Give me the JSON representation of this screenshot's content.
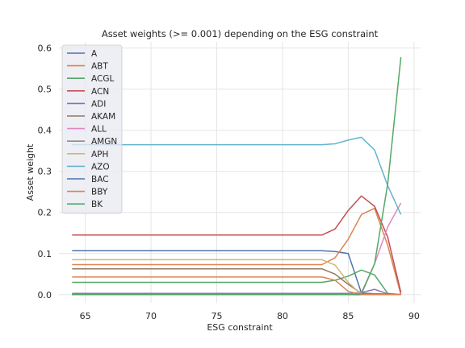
{
  "chart_data": {
    "type": "line",
    "title": "Asset weights (>= 0.001) depending on the ESG constraint",
    "xlabel": "ESG constraint",
    "ylabel": "Asset weight",
    "xlim": [
      63,
      90.5
    ],
    "ylim": [
      -0.02,
      0.615
    ],
    "xticks": [
      65,
      70,
      75,
      80,
      85,
      90
    ],
    "yticks": [
      0.0,
      0.1,
      0.2,
      0.3,
      0.4,
      0.5,
      0.6
    ],
    "grid": true,
    "legend_position": "upper-left",
    "series": [
      {
        "name": "A",
        "color": "#4c72b0",
        "points": [
          [
            64,
            0.107
          ],
          [
            83,
            0.107
          ],
          [
            84,
            0.105
          ],
          [
            85,
            0.1
          ],
          [
            86,
            0.004
          ],
          [
            87,
            0.002
          ],
          [
            88,
            0.001
          ],
          [
            89,
            0.0
          ]
        ]
      },
      {
        "name": "ABT",
        "color": "#dd8452",
        "points": [
          [
            64,
            0.073
          ],
          [
            83,
            0.073
          ],
          [
            84,
            0.09
          ],
          [
            85,
            0.135
          ],
          [
            86,
            0.195
          ],
          [
            87,
            0.21
          ],
          [
            88,
            0.12
          ],
          [
            89,
            0.0
          ]
        ]
      },
      {
        "name": "ACGL",
        "color": "#55a868",
        "points": [
          [
            64,
            0.03
          ],
          [
            83,
            0.03
          ],
          [
            84,
            0.035
          ],
          [
            85,
            0.045
          ],
          [
            86,
            0.06
          ],
          [
            87,
            0.048
          ],
          [
            88,
            0.003
          ],
          [
            89,
            0.0
          ]
        ]
      },
      {
        "name": "ACN",
        "color": "#c44e52",
        "points": [
          [
            64,
            0.145
          ],
          [
            83,
            0.145
          ],
          [
            84,
            0.16
          ],
          [
            85,
            0.205
          ],
          [
            86,
            0.24
          ],
          [
            87,
            0.215
          ],
          [
            88,
            0.14
          ],
          [
            89,
            0.005
          ]
        ]
      },
      {
        "name": "ADI",
        "color": "#8172b3",
        "points": [
          [
            64,
            0.003
          ],
          [
            85,
            0.003
          ],
          [
            86,
            0.005
          ],
          [
            87,
            0.013
          ],
          [
            88,
            0.002
          ],
          [
            89,
            0.0
          ]
        ]
      },
      {
        "name": "AKAM",
        "color": "#937860",
        "points": [
          [
            64,
            0.063
          ],
          [
            83,
            0.063
          ],
          [
            84,
            0.05
          ],
          [
            85,
            0.025
          ],
          [
            86,
            0.003
          ],
          [
            87,
            0.002
          ],
          [
            88,
            0.001
          ],
          [
            89,
            0.0
          ]
        ]
      },
      {
        "name": "ALL",
        "color": "#da8bc3",
        "points": [
          [
            64,
            0.0
          ],
          [
            85,
            0.0
          ],
          [
            86,
            0.005
          ],
          [
            87,
            0.075
          ],
          [
            88,
            0.165
          ],
          [
            89,
            0.223
          ]
        ]
      },
      {
        "name": "AMGN",
        "color": "#8c8c8c",
        "points": [
          [
            64,
            0.0
          ],
          [
            85,
            0.0
          ],
          [
            86,
            0.0
          ],
          [
            87,
            0.0
          ],
          [
            88,
            0.0
          ],
          [
            89,
            0.0
          ]
        ]
      },
      {
        "name": "APH",
        "color": "#ccb974",
        "points": [
          [
            64,
            0.085
          ],
          [
            83,
            0.085
          ],
          [
            84,
            0.072
          ],
          [
            85,
            0.03
          ],
          [
            86,
            0.0
          ],
          [
            87,
            0.0
          ],
          [
            88,
            0.0
          ],
          [
            89,
            0.0
          ]
        ]
      },
      {
        "name": "AZO",
        "color": "#64b5cd",
        "points": [
          [
            64,
            0.365
          ],
          [
            83,
            0.365
          ],
          [
            84,
            0.367
          ],
          [
            85,
            0.376
          ],
          [
            86,
            0.383
          ],
          [
            87,
            0.352
          ],
          [
            88,
            0.265
          ],
          [
            89,
            0.195
          ]
        ]
      },
      {
        "name": "BAC",
        "color": "#4c72b0",
        "points": [
          [
            64,
            0.0
          ],
          [
            89,
            0.0
          ]
        ]
      },
      {
        "name": "BBY",
        "color": "#dd8452",
        "points": [
          [
            64,
            0.043
          ],
          [
            83,
            0.043
          ],
          [
            84,
            0.035
          ],
          [
            85,
            0.008
          ],
          [
            86,
            0.0
          ],
          [
            87,
            0.0
          ],
          [
            88,
            0.0
          ],
          [
            89,
            0.0
          ]
        ]
      },
      {
        "name": "BK",
        "color": "#55a868",
        "points": [
          [
            64,
            0.0
          ],
          [
            85,
            0.0
          ],
          [
            86,
            0.002
          ],
          [
            87,
            0.075
          ],
          [
            88,
            0.27
          ],
          [
            89,
            0.578
          ]
        ]
      }
    ]
  }
}
